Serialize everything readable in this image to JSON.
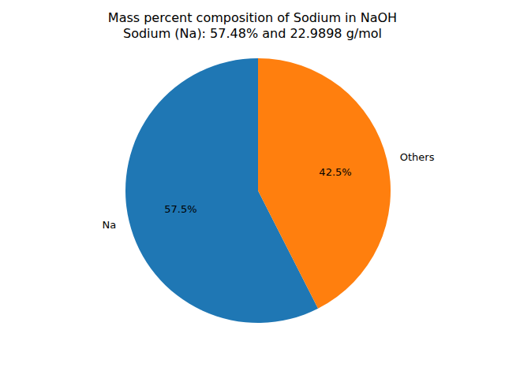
{
  "chart_data": {
    "type": "pie",
    "title": "Mass percent composition of Sodium in NaOH",
    "subtitle": "Sodium (Na): 57.48% and 22.9898 g/mol",
    "categories": [
      "Na",
      "Others"
    ],
    "values": [
      57.48,
      42.52
    ],
    "value_labels": [
      "57.5%",
      "42.5%"
    ],
    "data_labels": true,
    "colors": [
      "#1f77b4",
      "#ff7f0e"
    ]
  }
}
